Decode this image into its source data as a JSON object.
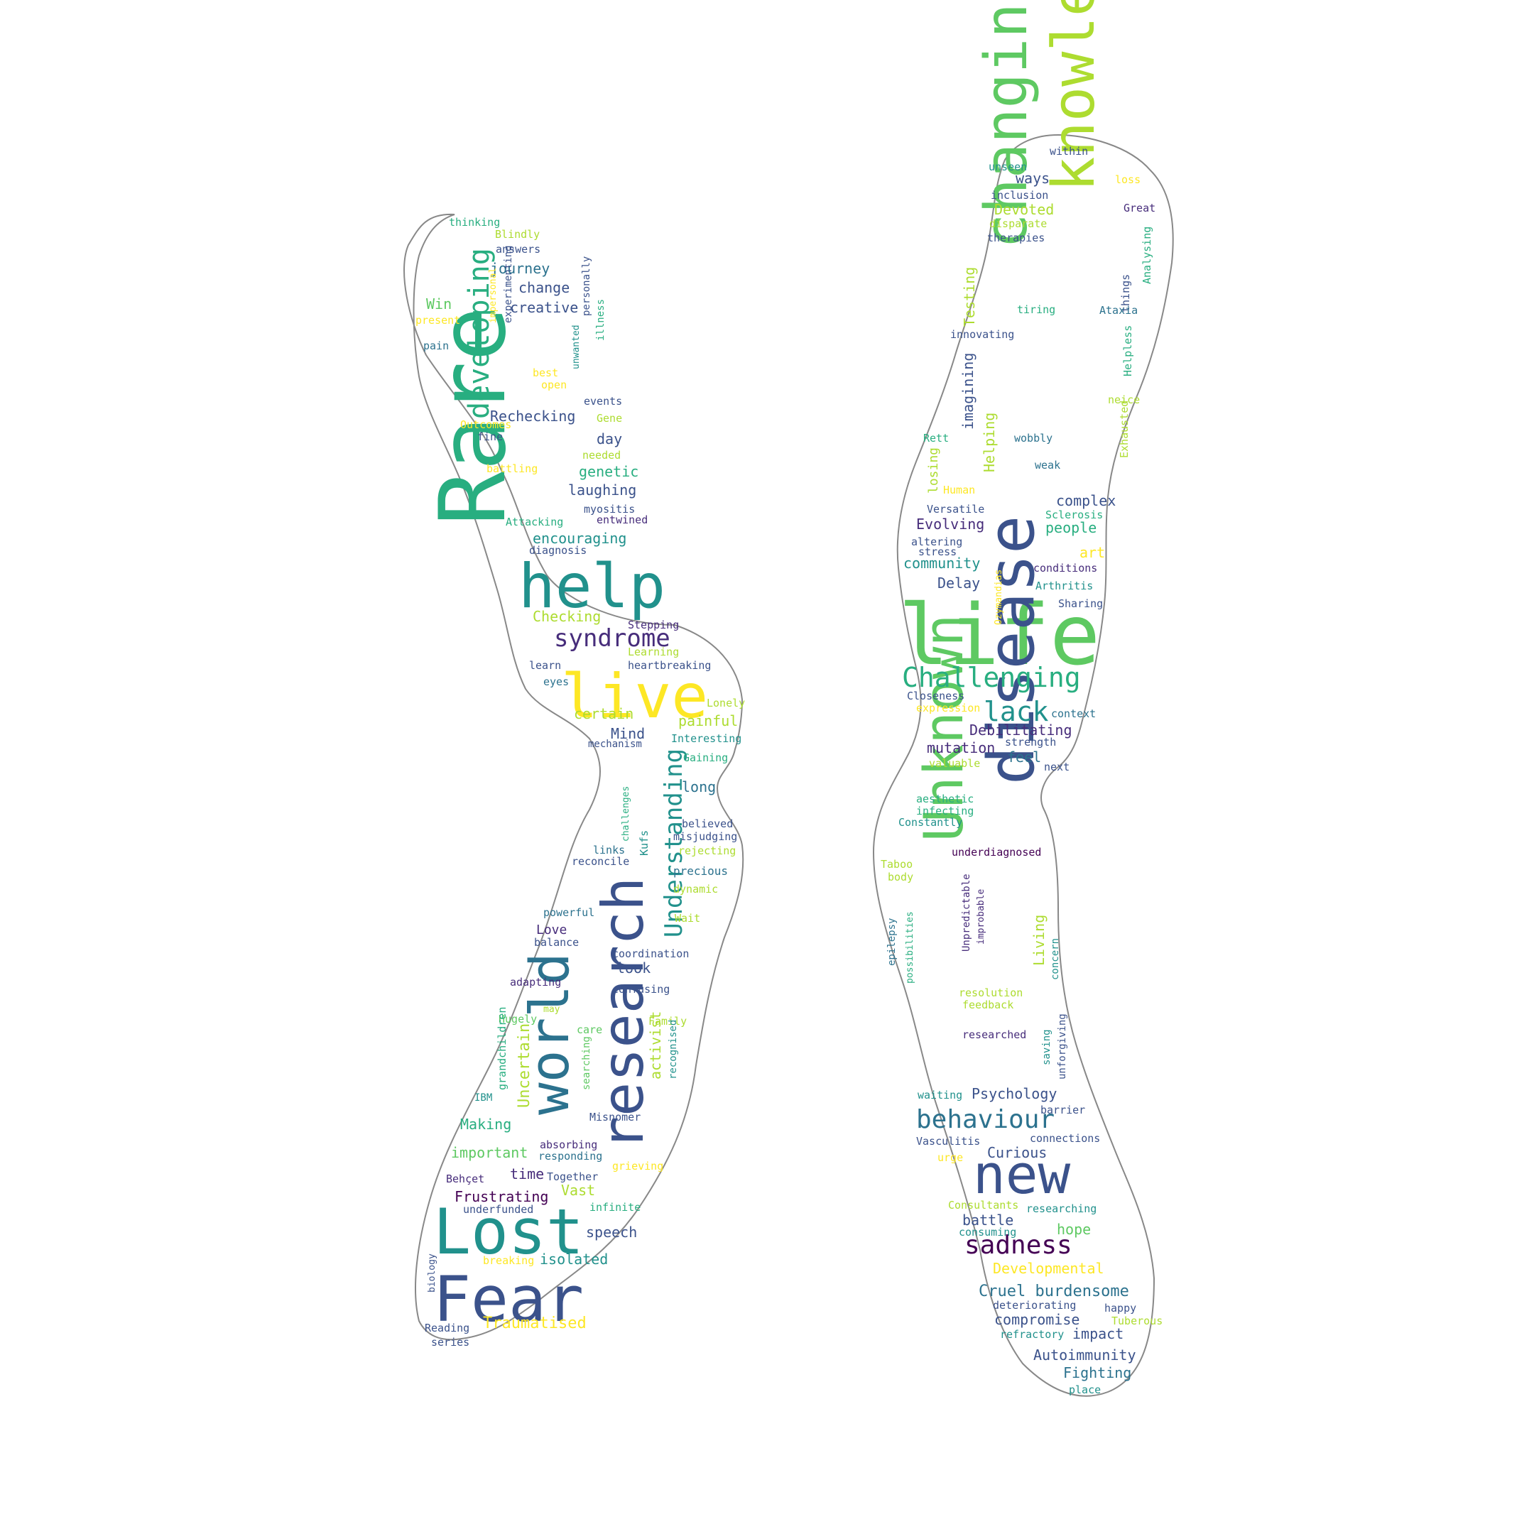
{
  "palette": {
    "c1": "#440154",
    "c2": "#472d7b",
    "c3": "#3b528b",
    "c4": "#2c728e",
    "c5": "#21918c",
    "c6": "#28ae80",
    "c7": "#5ec962",
    "c8": "#addc30",
    "c9": "#fde725",
    "outline": "#888888"
  },
  "left_words": [
    "Rare",
    "help",
    "live",
    "research",
    "world",
    "Lost",
    "Fear",
    "developing",
    "syndrome",
    "Understanding",
    "journey",
    "change",
    "creative",
    "Rechecking",
    "day",
    "genetic",
    "laughing",
    "encouraging",
    "Checking",
    "Stepping",
    "Learning",
    "heartbreaking",
    "learn",
    "eyes",
    "certain",
    "Mind",
    "painful",
    "Interesting",
    "mechanism",
    "Gaining",
    "long",
    "Lonely",
    "believed",
    "misjudging",
    "rejecting",
    "precious",
    "dynamic",
    "links",
    "reconcile",
    "Kufs",
    "challenges",
    "Wait",
    "powerful",
    "Love",
    "balance",
    "coordination",
    "look",
    "adapting",
    "confusing",
    "may",
    "Hugely",
    "care",
    "Family",
    "activist",
    "recognised",
    "searching",
    "grandchildren",
    "Uncertain",
    "IBM",
    "Making",
    "Misnomer",
    "important",
    "absorbing",
    "responding",
    "grieving",
    "Behçet",
    "time",
    "Together",
    "Frustrating",
    "Vast",
    "underfunded",
    "infinite",
    "speech",
    "breaking",
    "isolated",
    "biology",
    "Traumatised",
    "Reading",
    "series",
    "thinking",
    "Blindly",
    "answers",
    "Win",
    "present",
    "pain",
    "impersonal",
    "experimenting",
    "best",
    "open",
    "unwanted",
    "personally",
    "illness",
    "events",
    "Outcomes",
    "fine",
    "Gene",
    "needed",
    "battling",
    "myositis",
    "entwined",
    "Attacking",
    "diagnosis"
  ],
  "right_words": [
    "life",
    "changing",
    "knowledge",
    "disease",
    "Unknown",
    "new",
    "Challenging",
    "lack",
    "behaviour",
    "sadness",
    "within",
    "unseen",
    "loss",
    "ways",
    "inclusion",
    "Great",
    "Devoted",
    "disparate",
    "therapies",
    "Testing",
    "things",
    "Analysing",
    "tiring",
    "Ataxia",
    "innovating",
    "imagining",
    "Helpless",
    "neice",
    "Exhausted",
    "Rett",
    "wobbly",
    "Helping",
    "weak",
    "losing",
    "Human",
    "Versatile",
    "Sclerosis",
    "complex",
    "Evolving",
    "people",
    "altering",
    "stress",
    "art",
    "community",
    "conditions",
    "Delay",
    "Arthritis",
    "Sharing",
    "Ozymandias",
    "Closeness",
    "expression",
    "context",
    "Debilitating",
    "strength",
    "mutation",
    "feel",
    "valuable",
    "next",
    "aesthetic",
    "infecting",
    "Constantly",
    "underdiagnosed",
    "Taboo",
    "body",
    "Unpredictable",
    "improbable",
    "epilepsy",
    "possibilities",
    "Living",
    "concern",
    "resolution",
    "feedback",
    "researched",
    "saving",
    "unforgiving",
    "waiting",
    "Psychology",
    "barrier",
    "connections",
    "Vasculitis",
    "urge",
    "Curious",
    "Consultants",
    "researching",
    "battle",
    "consuming",
    "hope",
    "Developmental",
    "Cruel burdensome",
    "deteriorating",
    "happy",
    "compromise",
    "Tuberous",
    "refractory",
    "impact",
    "Autoimmunity",
    "Fighting",
    "place"
  ]
}
